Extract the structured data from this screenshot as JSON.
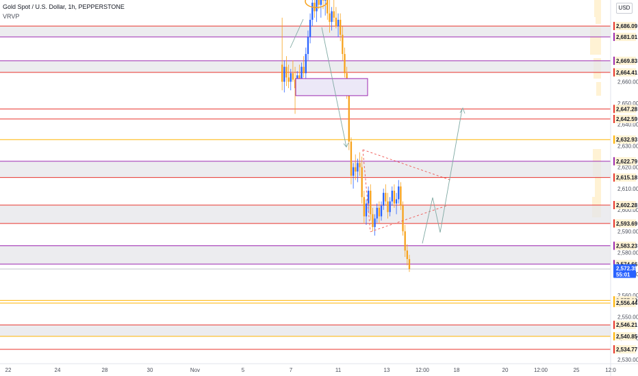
{
  "header": {
    "title": "Gold Spot / U.S. Dollar, 1h, PEPPERSTONE",
    "indicator": "VRVP"
  },
  "currency_button": "USD",
  "current_price": {
    "value": "2,572.35",
    "countdown": "55:01"
  },
  "colors": {
    "up": "#2962ff",
    "down": "#f7a21b",
    "red_line": "#e8332b",
    "purple_line": "#9c27b0",
    "orange_line": "#ffb300",
    "zone_fill": "#e6e6ea",
    "projection": "#4caf50",
    "triangle": "#ef5350",
    "current": "#2962ff"
  },
  "chart_data": {
    "type": "candlestick",
    "symbol": "XAUUSD",
    "timeframe": "1h",
    "y_ticks": [
      "2,660.00",
      "2,650.00",
      "2,640.00",
      "2,630.00",
      "2,620.00",
      "2,610.00",
      "2,600.00",
      "2,590.00",
      "2,580.00",
      "2,570.00",
      "2,560.00",
      "2,550.00",
      "2,540.00",
      "2,530.00"
    ],
    "y_tick_values": [
      2660,
      2650,
      2640,
      2630,
      2620,
      2610,
      2600,
      2590,
      2580,
      2570,
      2560,
      2550,
      2540,
      2530
    ],
    "x_ticks": [
      {
        "label": "22",
        "date": "2024-10-22"
      },
      {
        "label": "24",
        "date": "2024-10-24"
      },
      {
        "label": "28",
        "date": "2024-10-28"
      },
      {
        "label": "30",
        "date": "2024-10-30"
      },
      {
        "label": "Nov",
        "date": "2024-11-01"
      },
      {
        "label": "5",
        "date": "2024-11-05"
      },
      {
        "label": "7",
        "date": "2024-11-07"
      },
      {
        "label": "11",
        "date": "2024-11-11"
      },
      {
        "label": "13",
        "date": "2024-11-13"
      },
      {
        "label": "12:00",
        "date": "2024-11-14 12:00"
      },
      {
        "label": "18",
        "date": "2024-11-18"
      },
      {
        "label": "20",
        "date": "2024-11-20"
      },
      {
        "label": "12:00",
        "date": "2024-11-21 12:00"
      },
      {
        "label": "25",
        "date": "2024-11-25"
      },
      {
        "label": "12:0",
        "date": "2024-11-26 12:00"
      }
    ],
    "levels": [
      {
        "value": 2686.09,
        "label": "2,686.09",
        "color": "red"
      },
      {
        "value": 2681.01,
        "label": "2,681.01",
        "color": "purple"
      },
      {
        "value": 2669.83,
        "label": "2,669.83",
        "color": "purple"
      },
      {
        "value": 2664.41,
        "label": "2,664.41",
        "color": "red"
      },
      {
        "value": 2647.28,
        "label": "2,647.28",
        "color": "red"
      },
      {
        "value": 2642.59,
        "label": "2,642.59",
        "color": "red"
      },
      {
        "value": 2632.93,
        "label": "2,632.93",
        "color": "orange"
      },
      {
        "value": 2622.79,
        "label": "2,622.79",
        "color": "purple"
      },
      {
        "value": 2615.18,
        "label": "2,615.18",
        "color": "red"
      },
      {
        "value": 2602.28,
        "label": "2,602.28",
        "color": "red"
      },
      {
        "value": 2593.69,
        "label": "2,593.69",
        "color": "red"
      },
      {
        "value": 2583.23,
        "label": "2,583.23",
        "color": "purple"
      },
      {
        "value": 2574.66,
        "label": "2,574.66",
        "color": "purple"
      },
      {
        "value": 2557.69,
        "label": "2,557.69",
        "color": "orange"
      },
      {
        "value": 2556.44,
        "label": "2,556.44",
        "color": "orange"
      },
      {
        "value": 2546.21,
        "label": "2,546.21",
        "color": "red"
      },
      {
        "value": 2540.85,
        "label": "2,540.85",
        "color": "orange"
      },
      {
        "value": 2534.77,
        "label": "2,534.77",
        "color": "red"
      }
    ],
    "zones": [
      [
        2681.01,
        2686.09
      ],
      [
        2664.41,
        2669.83
      ],
      [
        2615.18,
        2622.79
      ],
      [
        2593.69,
        2602.28
      ],
      [
        2574.66,
        2583.23
      ],
      [
        2540.85,
        2546.21
      ]
    ],
    "candles": [
      {
        "o": 2668,
        "h": 2690,
        "l": 2656,
        "c": 2660
      },
      {
        "o": 2660,
        "h": 2670,
        "l": 2655,
        "c": 2667
      },
      {
        "o": 2667,
        "h": 2672,
        "l": 2658,
        "c": 2662
      },
      {
        "o": 2662,
        "h": 2668,
        "l": 2657,
        "c": 2660
      },
      {
        "o": 2660,
        "h": 2666,
        "l": 2656,
        "c": 2664
      },
      {
        "o": 2664,
        "h": 2670,
        "l": 2660,
        "c": 2661
      },
      {
        "o": 2661,
        "h": 2667,
        "l": 2645,
        "c": 2657
      },
      {
        "o": 2657,
        "h": 2665,
        "l": 2654,
        "c": 2663
      },
      {
        "o": 2663,
        "h": 2668,
        "l": 2659,
        "c": 2660
      },
      {
        "o": 2660,
        "h": 2669,
        "l": 2657,
        "c": 2667
      },
      {
        "o": 2667,
        "h": 2672,
        "l": 2662,
        "c": 2664
      },
      {
        "o": 2664,
        "h": 2676,
        "l": 2661,
        "c": 2673
      },
      {
        "o": 2673,
        "h": 2684,
        "l": 2670,
        "c": 2681
      },
      {
        "o": 2681,
        "h": 2692,
        "l": 2678,
        "c": 2689
      },
      {
        "o": 2689,
        "h": 2700,
        "l": 2686,
        "c": 2697
      },
      {
        "o": 2697,
        "h": 2704,
        "l": 2690,
        "c": 2693
      },
      {
        "o": 2693,
        "h": 2702,
        "l": 2688,
        "c": 2699
      },
      {
        "o": 2699,
        "h": 2707,
        "l": 2694,
        "c": 2696
      },
      {
        "o": 2696,
        "h": 2705,
        "l": 2690,
        "c": 2702
      },
      {
        "o": 2702,
        "h": 2708,
        "l": 2694,
        "c": 2698
      },
      {
        "o": 2698,
        "h": 2704,
        "l": 2691,
        "c": 2701
      },
      {
        "o": 2701,
        "h": 2706,
        "l": 2689,
        "c": 2692
      },
      {
        "o": 2692,
        "h": 2699,
        "l": 2683,
        "c": 2688
      },
      {
        "o": 2688,
        "h": 2695,
        "l": 2684,
        "c": 2693
      },
      {
        "o": 2693,
        "h": 2700,
        "l": 2688,
        "c": 2690
      },
      {
        "o": 2690,
        "h": 2695,
        "l": 2685,
        "c": 2686
      },
      {
        "o": 2686,
        "h": 2692,
        "l": 2681,
        "c": 2689
      },
      {
        "o": 2689,
        "h": 2692,
        "l": 2679,
        "c": 2682
      },
      {
        "o": 2682,
        "h": 2686,
        "l": 2670,
        "c": 2673
      },
      {
        "o": 2673,
        "h": 2676,
        "l": 2662,
        "c": 2664
      },
      {
        "o": 2664,
        "h": 2667,
        "l": 2652,
        "c": 2656
      },
      {
        "o": 2656,
        "h": 2658,
        "l": 2628,
        "c": 2632
      },
      {
        "o": 2632,
        "h": 2634,
        "l": 2612,
        "c": 2616
      },
      {
        "o": 2616,
        "h": 2622,
        "l": 2610,
        "c": 2620
      },
      {
        "o": 2620,
        "h": 2626,
        "l": 2614,
        "c": 2618
      },
      {
        "o": 2618,
        "h": 2624,
        "l": 2613,
        "c": 2622
      },
      {
        "o": 2622,
        "h": 2627,
        "l": 2616,
        "c": 2620
      },
      {
        "o": 2620,
        "h": 2625,
        "l": 2603,
        "c": 2606
      },
      {
        "o": 2606,
        "h": 2609,
        "l": 2594,
        "c": 2597
      },
      {
        "o": 2597,
        "h": 2605,
        "l": 2593,
        "c": 2603
      },
      {
        "o": 2603,
        "h": 2611,
        "l": 2599,
        "c": 2609
      },
      {
        "o": 2609,
        "h": 2612,
        "l": 2595,
        "c": 2598
      },
      {
        "o": 2598,
        "h": 2601,
        "l": 2590,
        "c": 2592
      },
      {
        "o": 2592,
        "h": 2598,
        "l": 2588,
        "c": 2596
      },
      {
        "o": 2596,
        "h": 2603,
        "l": 2594,
        "c": 2601
      },
      {
        "o": 2601,
        "h": 2604,
        "l": 2594,
        "c": 2597
      },
      {
        "o": 2597,
        "h": 2604,
        "l": 2595,
        "c": 2602
      },
      {
        "o": 2602,
        "h": 2610,
        "l": 2600,
        "c": 2608
      },
      {
        "o": 2608,
        "h": 2612,
        "l": 2602,
        "c": 2604
      },
      {
        "o": 2604,
        "h": 2608,
        "l": 2596,
        "c": 2599
      },
      {
        "o": 2599,
        "h": 2606,
        "l": 2597,
        "c": 2604
      },
      {
        "o": 2604,
        "h": 2611,
        "l": 2602,
        "c": 2609
      },
      {
        "o": 2609,
        "h": 2612,
        "l": 2601,
        "c": 2603
      },
      {
        "o": 2603,
        "h": 2608,
        "l": 2598,
        "c": 2605
      },
      {
        "o": 2605,
        "h": 2614,
        "l": 2603,
        "c": 2611
      },
      {
        "o": 2611,
        "h": 2613,
        "l": 2600,
        "c": 2602
      },
      {
        "o": 2602,
        "h": 2604,
        "l": 2588,
        "c": 2590
      },
      {
        "o": 2590,
        "h": 2593,
        "l": 2578,
        "c": 2581
      },
      {
        "o": 2581,
        "h": 2584,
        "l": 2574,
        "c": 2577
      },
      {
        "o": 2577,
        "h": 2579,
        "l": 2571,
        "c": 2572.35
      }
    ],
    "annotations": {
      "box": {
        "y1": 2653.5,
        "y2": 2661.5
      },
      "triangle_upper": [
        [
          2624,
          2623
        ],
        [
          2652,
          2611
        ]
      ],
      "triangle_lower": [
        [
          2590,
          2590
        ],
        [
          2652,
          2600
        ]
      ],
      "arrow_down": [
        [
          2660,
          2628
        ]
      ],
      "arrow_up_rally": [
        [
          2672,
          2689
        ]
      ],
      "zigzag_projection": [
        [
          2582,
          2604,
          2590,
          2602,
          2646
        ]
      ]
    }
  }
}
